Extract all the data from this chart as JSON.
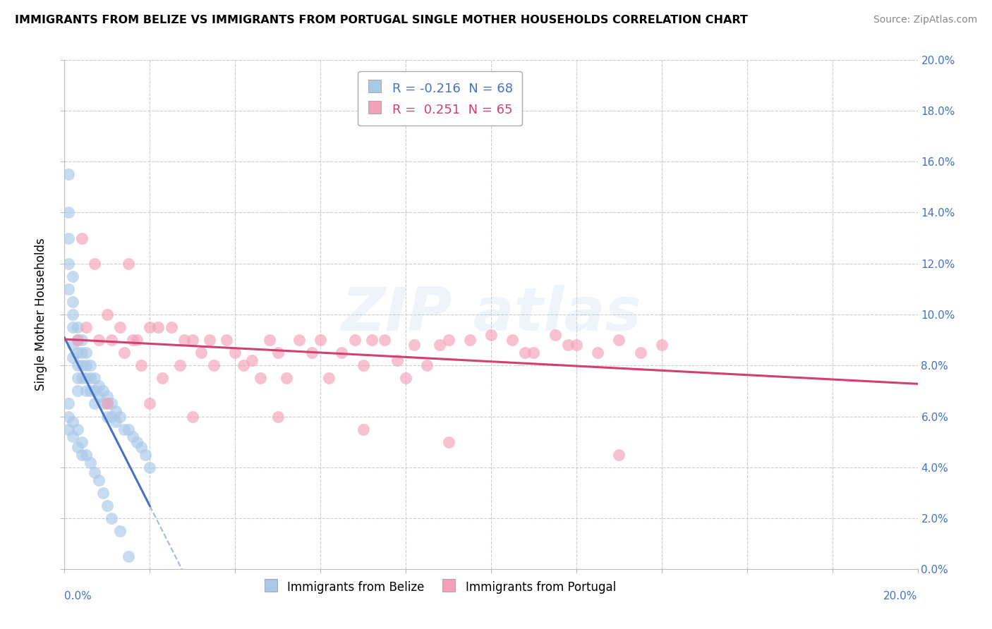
{
  "title": "IMMIGRANTS FROM BELIZE VS IMMIGRANTS FROM PORTUGAL SINGLE MOTHER HOUSEHOLDS CORRELATION CHART",
  "source": "Source: ZipAtlas.com",
  "ylabel": "Single Mother Households",
  "xlim": [
    0.0,
    0.2
  ],
  "ylim": [
    0.0,
    0.2
  ],
  "legend_belize": "R = -0.216  N = 68",
  "legend_portugal": "R =  0.251  N = 65",
  "belize_color": "#a8c8e8",
  "portugal_color": "#f4a0b8",
  "belize_line_color": "#4472c4",
  "portugal_line_color": "#d04070",
  "title_fontsize": 11.5,
  "source_fontsize": 10,
  "tick_fontsize": 11,
  "ylabel_fontsize": 12,
  "legend_fontsize": 13,
  "belize_x": [
    0.001,
    0.001,
    0.001,
    0.001,
    0.001,
    0.002,
    0.002,
    0.002,
    0.002,
    0.002,
    0.002,
    0.003,
    0.003,
    0.003,
    0.003,
    0.003,
    0.003,
    0.004,
    0.004,
    0.004,
    0.004,
    0.005,
    0.005,
    0.005,
    0.005,
    0.006,
    0.006,
    0.006,
    0.007,
    0.007,
    0.007,
    0.008,
    0.008,
    0.009,
    0.009,
    0.01,
    0.01,
    0.01,
    0.011,
    0.011,
    0.012,
    0.012,
    0.013,
    0.014,
    0.015,
    0.016,
    0.017,
    0.018,
    0.019,
    0.02,
    0.001,
    0.001,
    0.001,
    0.002,
    0.002,
    0.003,
    0.003,
    0.004,
    0.004,
    0.005,
    0.006,
    0.007,
    0.008,
    0.009,
    0.01,
    0.011,
    0.013,
    0.015
  ],
  "belize_y": [
    0.155,
    0.14,
    0.13,
    0.12,
    0.11,
    0.115,
    0.105,
    0.1,
    0.095,
    0.088,
    0.083,
    0.095,
    0.09,
    0.085,
    0.08,
    0.075,
    0.07,
    0.09,
    0.085,
    0.08,
    0.075,
    0.085,
    0.08,
    0.075,
    0.07,
    0.08,
    0.075,
    0.07,
    0.075,
    0.07,
    0.065,
    0.072,
    0.068,
    0.07,
    0.065,
    0.068,
    0.065,
    0.06,
    0.065,
    0.06,
    0.062,
    0.058,
    0.06,
    0.055,
    0.055,
    0.052,
    0.05,
    0.048,
    0.045,
    0.04,
    0.065,
    0.06,
    0.055,
    0.058,
    0.052,
    0.055,
    0.048,
    0.05,
    0.045,
    0.045,
    0.042,
    0.038,
    0.035,
    0.03,
    0.025,
    0.02,
    0.015,
    0.005
  ],
  "portugal_x": [
    0.003,
    0.004,
    0.005,
    0.007,
    0.008,
    0.01,
    0.011,
    0.013,
    0.014,
    0.015,
    0.016,
    0.017,
    0.018,
    0.02,
    0.022,
    0.023,
    0.025,
    0.027,
    0.028,
    0.03,
    0.032,
    0.034,
    0.035,
    0.038,
    0.04,
    0.042,
    0.044,
    0.046,
    0.048,
    0.05,
    0.052,
    0.055,
    0.058,
    0.06,
    0.062,
    0.065,
    0.068,
    0.07,
    0.072,
    0.075,
    0.078,
    0.08,
    0.082,
    0.085,
    0.088,
    0.09,
    0.095,
    0.1,
    0.105,
    0.108,
    0.11,
    0.115,
    0.118,
    0.12,
    0.125,
    0.13,
    0.135,
    0.14,
    0.01,
    0.02,
    0.03,
    0.05,
    0.07,
    0.09,
    0.13
  ],
  "portugal_y": [
    0.09,
    0.13,
    0.095,
    0.12,
    0.09,
    0.1,
    0.09,
    0.095,
    0.085,
    0.12,
    0.09,
    0.09,
    0.08,
    0.095,
    0.095,
    0.075,
    0.095,
    0.08,
    0.09,
    0.09,
    0.085,
    0.09,
    0.08,
    0.09,
    0.085,
    0.08,
    0.082,
    0.075,
    0.09,
    0.085,
    0.075,
    0.09,
    0.085,
    0.09,
    0.075,
    0.085,
    0.09,
    0.08,
    0.09,
    0.09,
    0.082,
    0.075,
    0.088,
    0.08,
    0.088,
    0.09,
    0.09,
    0.092,
    0.09,
    0.085,
    0.085,
    0.092,
    0.088,
    0.088,
    0.085,
    0.09,
    0.085,
    0.088,
    0.065,
    0.065,
    0.06,
    0.06,
    0.055,
    0.05,
    0.045
  ]
}
